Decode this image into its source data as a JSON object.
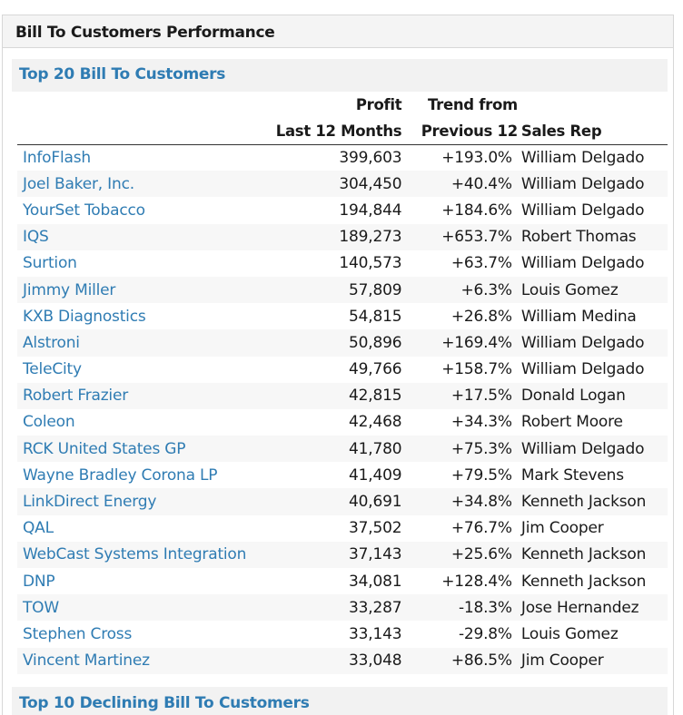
{
  "panel": {
    "title": "Bill To Customers Performance"
  },
  "top20": {
    "title": "Top 20 Bill To Customers",
    "headers": {
      "profit_line1": "Profit",
      "profit_line2": "Last 12 Months",
      "trend_line1": "Trend from",
      "trend_line2": "Previous 12",
      "rep": "Sales Rep"
    },
    "rows": [
      {
        "name": "InfoFlash",
        "profit": "399,603",
        "trend": "+193.0%",
        "rep": "William Delgado"
      },
      {
        "name": "Joel Baker, Inc.",
        "profit": "304,450",
        "trend": "+40.4%",
        "rep": "William Delgado"
      },
      {
        "name": "YourSet Tobacco",
        "profit": "194,844",
        "trend": "+184.6%",
        "rep": "William Delgado"
      },
      {
        "name": "IQS",
        "profit": "189,273",
        "trend": "+653.7%",
        "rep": "Robert Thomas"
      },
      {
        "name": "Surtion",
        "profit": "140,573",
        "trend": "+63.7%",
        "rep": "William Delgado"
      },
      {
        "name": "Jimmy Miller",
        "profit": "57,809",
        "trend": "+6.3%",
        "rep": "Louis Gomez"
      },
      {
        "name": "KXB Diagnostics",
        "profit": "54,815",
        "trend": "+26.8%",
        "rep": "William Medina"
      },
      {
        "name": "Alstroni",
        "profit": "50,896",
        "trend": "+169.4%",
        "rep": "William Delgado"
      },
      {
        "name": "TeleCity",
        "profit": "49,766",
        "trend": "+158.7%",
        "rep": "William Delgado"
      },
      {
        "name": "Robert Frazier",
        "profit": "42,815",
        "trend": "+17.5%",
        "rep": "Donald Logan"
      },
      {
        "name": "Coleon",
        "profit": "42,468",
        "trend": "+34.3%",
        "rep": "Robert Moore"
      },
      {
        "name": "RCK United States GP",
        "profit": "41,780",
        "trend": "+75.3%",
        "rep": "William Delgado"
      },
      {
        "name": "Wayne Bradley Corona LP",
        "profit": "41,409",
        "trend": "+79.5%",
        "rep": "Mark Stevens"
      },
      {
        "name": "LinkDirect Energy",
        "profit": "40,691",
        "trend": "+34.8%",
        "rep": "Kenneth Jackson"
      },
      {
        "name": "QAL",
        "profit": "37,502",
        "trend": "+76.7%",
        "rep": "Jim Cooper"
      },
      {
        "name": "WebCast Systems Integration",
        "profit": "37,143",
        "trend": "+25.6%",
        "rep": "Kenneth Jackson"
      },
      {
        "name": "DNP",
        "profit": "34,081",
        "trend": "+128.4%",
        "rep": "Kenneth Jackson"
      },
      {
        "name": "TOW",
        "profit": "33,287",
        "trend": "-18.3%",
        "rep": "Jose Hernandez"
      },
      {
        "name": "Stephen Cross",
        "profit": "33,143",
        "trend": "-29.8%",
        "rep": "Louis Gomez"
      },
      {
        "name": "Vincent Martinez",
        "profit": "33,048",
        "trend": "+86.5%",
        "rep": "Jim Cooper"
      }
    ]
  },
  "top10_declining": {
    "title": "Top 10 Declining Bill To Customers"
  },
  "colors": {
    "link": "#2f7cb3",
    "header_bg": "#f4f4f4",
    "section_bg": "#f2f2f2"
  }
}
